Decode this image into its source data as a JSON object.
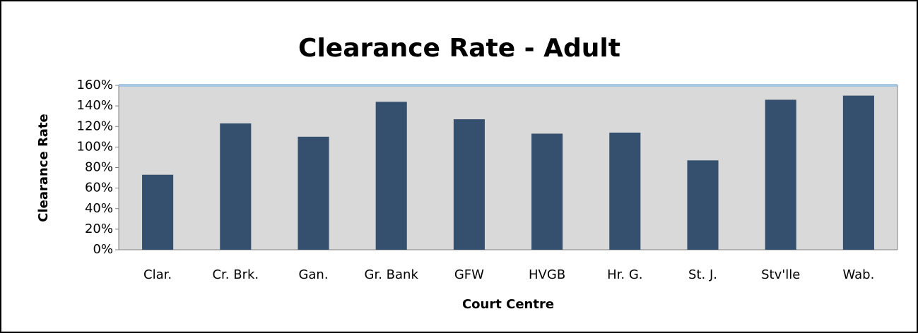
{
  "chart_data": {
    "type": "bar",
    "title": "Clearance Rate - Adult",
    "x_label": "Court Centre",
    "y_label": "Clearance Rate",
    "categories": [
      "Clar.",
      "Cr. Brk.",
      "Gan.",
      "Gr. Bank",
      "GFW",
      "HVGB",
      "Hr. G.",
      "St. J.",
      "Stv'lle",
      "Wab."
    ],
    "values": [
      73,
      123,
      110,
      144,
      127,
      113,
      114,
      87,
      146,
      150
    ],
    "color": "#354f6e",
    "ylim": [
      0,
      160
    ],
    "yticks": [
      {
        "value": 0,
        "label": "0%"
      },
      {
        "value": 20,
        "label": "20%"
      },
      {
        "value": 40,
        "label": "40%"
      },
      {
        "value": 60,
        "label": "60%"
      },
      {
        "value": 80,
        "label": "80%"
      },
      {
        "value": 100,
        "label": "100%"
      },
      {
        "value": 120,
        "label": "120%"
      },
      {
        "value": 140,
        "label": "140%"
      },
      {
        "value": 160,
        "label": "160%"
      }
    ],
    "grid": false
  }
}
